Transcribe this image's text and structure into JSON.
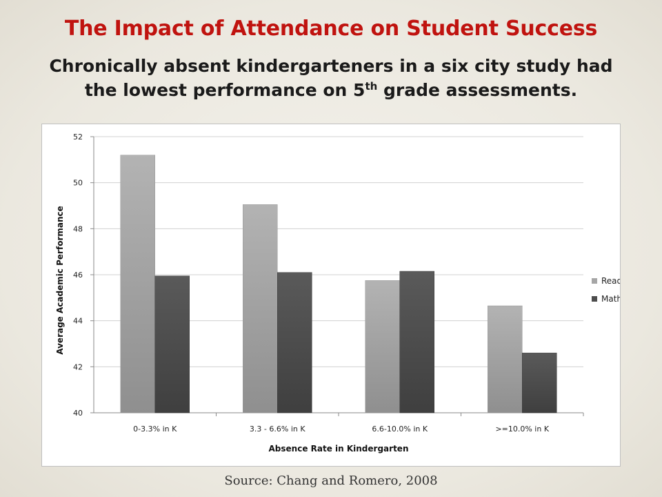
{
  "slide": {
    "title": "The Impact of Attendance on Student Success",
    "subtitle_line1": "Chronically absent kindergarteners in a six city study had",
    "subtitle_line2_pre": "the lowest performance on 5",
    "subtitle_sup": "th",
    "subtitle_line2_post": " grade assessments.",
    "source": "Source: Chang and Romero, 2008"
  },
  "colors": {
    "title": "#c0130f",
    "reading": "#a6a6a6",
    "math": "#4d4d4d"
  },
  "chart_data": {
    "type": "bar",
    "categories": [
      "0-3.3% in K",
      "3.3 - 6.6% in K",
      "6.6-10.0% in K",
      ">=10.0% in K"
    ],
    "series": [
      {
        "name": "Reading",
        "values": [
          51.2,
          49.05,
          45.75,
          44.65
        ]
      },
      {
        "name": "Math",
        "values": [
          45.95,
          46.1,
          46.15,
          42.6
        ]
      }
    ],
    "xlabel": "Absence Rate in Kindergarten",
    "ylabel": "Average Academic Performance",
    "ylim": [
      40,
      52
    ],
    "yticks": [
      40,
      42,
      44,
      46,
      48,
      50,
      52
    ],
    "grid": true,
    "legend": "right"
  }
}
